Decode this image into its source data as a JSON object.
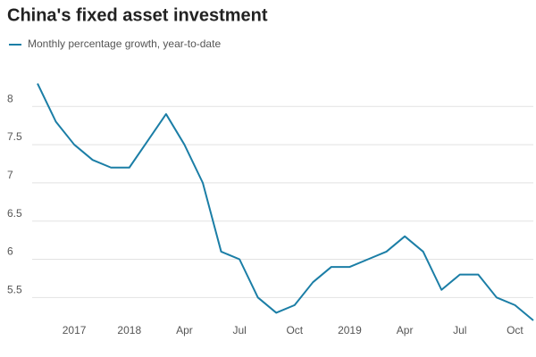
{
  "chart_data": {
    "type": "line",
    "title": "China's fixed asset investment",
    "categories": [
      null,
      null,
      "2017",
      null,
      null,
      "2018",
      null,
      null,
      "Apr",
      null,
      null,
      "Jul",
      null,
      null,
      "Oct",
      null,
      null,
      "2019",
      null,
      null,
      "Apr",
      null,
      null,
      "Jul",
      null,
      null,
      "Oct",
      null
    ],
    "series": [
      {
        "name": "Monthly percentage growth, year-to-date",
        "color": "#1b7ea6",
        "values": [
          8.3,
          7.8,
          7.5,
          7.3,
          7.2,
          7.2,
          7.55,
          7.9,
          7.5,
          7.0,
          6.1,
          6.0,
          5.5,
          5.3,
          5.4,
          5.7,
          5.9,
          5.9,
          6.0,
          6.1,
          6.3,
          6.1,
          5.6,
          5.8,
          5.8,
          5.5,
          5.4,
          5.2
        ]
      }
    ],
    "ylim": [
      5.2,
      8.4
    ],
    "yticks": [
      5.5,
      6,
      6.5,
      7,
      7.5,
      8
    ],
    "grid": true
  }
}
